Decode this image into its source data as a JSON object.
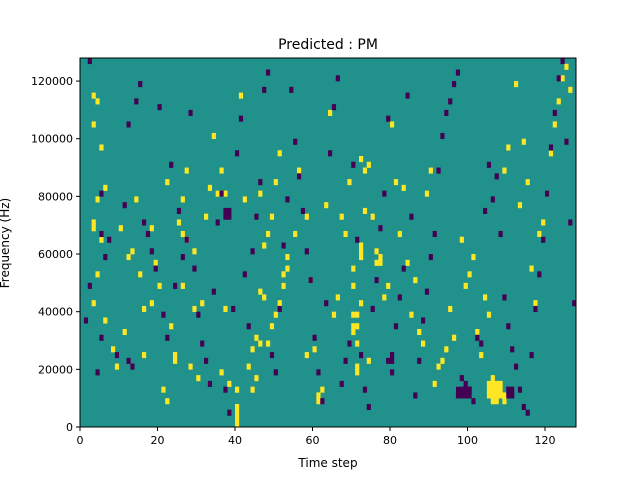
{
  "chart_data": {
    "type": "heatmap",
    "title": "Predicted : PM",
    "xlabel": "Time step",
    "ylabel": "Frequency (Hz)",
    "xlim": [
      0,
      128
    ],
    "ylim": [
      0,
      128000
    ],
    "x_ticks": [
      0,
      20,
      40,
      60,
      80,
      100,
      120
    ],
    "y_ticks": [
      0,
      20000,
      40000,
      60000,
      80000,
      100000,
      120000
    ],
    "x_tick_labels": [
      "0",
      "20",
      "40",
      "60",
      "80",
      "100",
      "120"
    ],
    "y_tick_labels": [
      "0",
      "20000",
      "40000",
      "60000",
      "80000",
      "100000",
      "120000"
    ],
    "n_time_bins": 128,
    "n_freq_bins": 64,
    "bin_height_hz": 2000,
    "colormap": {
      "background": "#21918c",
      "high": "#fde725",
      "low": "#440154"
    },
    "high_cells": [
      [
        3,
        57
      ],
      [
        4,
        56
      ],
      [
        3,
        52
      ],
      [
        5,
        48
      ],
      [
        6,
        41
      ],
      [
        4,
        39
      ],
      [
        3,
        35
      ],
      [
        3,
        34
      ],
      [
        5,
        32
      ],
      [
        4,
        26
      ],
      [
        3,
        21
      ],
      [
        6,
        18
      ],
      [
        8,
        13
      ],
      [
        9,
        10
      ],
      [
        10,
        34
      ],
      [
        14,
        39
      ],
      [
        12,
        29
      ],
      [
        15,
        26
      ],
      [
        13,
        30
      ],
      [
        11,
        16
      ],
      [
        16,
        20
      ],
      [
        18,
        21
      ],
      [
        16,
        12
      ],
      [
        18,
        34
      ],
      [
        19,
        28
      ],
      [
        20,
        24
      ],
      [
        22,
        42
      ],
      [
        23,
        17
      ],
      [
        24,
        12
      ],
      [
        24,
        11
      ],
      [
        21,
        6
      ],
      [
        22,
        4
      ],
      [
        27,
        44
      ],
      [
        26,
        39
      ],
      [
        29,
        30
      ],
      [
        25,
        35
      ],
      [
        26,
        33
      ],
      [
        27,
        32
      ],
      [
        28,
        10
      ],
      [
        30,
        8
      ],
      [
        29,
        20
      ],
      [
        26,
        24
      ],
      [
        31,
        21
      ],
      [
        32,
        36
      ],
      [
        33,
        41
      ],
      [
        34,
        50
      ],
      [
        36,
        44
      ],
      [
        37,
        40
      ],
      [
        37,
        20
      ],
      [
        36,
        9
      ],
      [
        38,
        7
      ],
      [
        40,
        6
      ],
      [
        40,
        3
      ],
      [
        40,
        2
      ],
      [
        40,
        1
      ],
      [
        40,
        0
      ],
      [
        41,
        57
      ],
      [
        42,
        39
      ],
      [
        43,
        10
      ],
      [
        44,
        13
      ],
      [
        45,
        15
      ],
      [
        46,
        14
      ],
      [
        47,
        31
      ],
      [
        48,
        33
      ],
      [
        46,
        40
      ],
      [
        49,
        36
      ],
      [
        50,
        42
      ],
      [
        51,
        47
      ],
      [
        52,
        26
      ],
      [
        53,
        29
      ],
      [
        55,
        33
      ],
      [
        56,
        44
      ],
      [
        58,
        36
      ],
      [
        58,
        12
      ],
      [
        59,
        25
      ],
      [
        60,
        13
      ],
      [
        61,
        4
      ],
      [
        61,
        5
      ],
      [
        62,
        6
      ],
      [
        63,
        38
      ],
      [
        64,
        54
      ],
      [
        65,
        19
      ],
      [
        66,
        22
      ],
      [
        67,
        36
      ],
      [
        68,
        33
      ],
      [
        69,
        42
      ],
      [
        70,
        27
      ],
      [
        70,
        24
      ],
      [
        71,
        10
      ],
      [
        71,
        9
      ],
      [
        72,
        21
      ],
      [
        70,
        16
      ],
      [
        71,
        14
      ],
      [
        72,
        46
      ],
      [
        73,
        37
      ],
      [
        74,
        11
      ],
      [
        75,
        36
      ],
      [
        76,
        30
      ],
      [
        77,
        28
      ],
      [
        78,
        22
      ],
      [
        79,
        24
      ],
      [
        80,
        52
      ],
      [
        81,
        42
      ],
      [
        82,
        33
      ],
      [
        83,
        41
      ],
      [
        84,
        28
      ],
      [
        85,
        19
      ],
      [
        86,
        25
      ],
      [
        87,
        16
      ],
      [
        88,
        14
      ],
      [
        89,
        40
      ],
      [
        90,
        44
      ],
      [
        91,
        7
      ],
      [
        92,
        10
      ],
      [
        93,
        11
      ],
      [
        94,
        13
      ],
      [
        95,
        20
      ],
      [
        96,
        15
      ],
      [
        97,
        6
      ],
      [
        98,
        32
      ],
      [
        99,
        24
      ],
      [
        100,
        26
      ],
      [
        101,
        29
      ],
      [
        102,
        16
      ],
      [
        103,
        12
      ],
      [
        104,
        22
      ],
      [
        105,
        19
      ],
      [
        106,
        8
      ],
      [
        107,
        7
      ],
      [
        106,
        4
      ],
      [
        107,
        4
      ],
      [
        108,
        5
      ],
      [
        108,
        6
      ],
      [
        109,
        44
      ],
      [
        110,
        48
      ],
      [
        112,
        59
      ],
      [
        113,
        38
      ],
      [
        114,
        49
      ],
      [
        115,
        42
      ],
      [
        116,
        27
      ],
      [
        117,
        21
      ],
      [
        118,
        33
      ],
      [
        119,
        35
      ],
      [
        120,
        40
      ],
      [
        121,
        47
      ],
      [
        122,
        52
      ],
      [
        123,
        56
      ],
      [
        124,
        60
      ],
      [
        125,
        62
      ],
      [
        126,
        58
      ],
      [
        70,
        17
      ],
      [
        71,
        17
      ],
      [
        70,
        19
      ],
      [
        71,
        19
      ],
      [
        72,
        29
      ],
      [
        72,
        30
      ],
      [
        72,
        31
      ],
      [
        73,
        44
      ],
      [
        74,
        45
      ],
      [
        76,
        28
      ],
      [
        77,
        29
      ],
      [
        48,
        14
      ],
      [
        49,
        17
      ],
      [
        50,
        19
      ],
      [
        51,
        21
      ],
      [
        52,
        24
      ],
      [
        53,
        27
      ],
      [
        35,
        40
      ],
      [
        36,
        40
      ],
      [
        46,
        23
      ],
      [
        47,
        22
      ],
      [
        44,
        6
      ],
      [
        45,
        8
      ],
      [
        105,
        5
      ],
      [
        105,
        6
      ],
      [
        105,
        7
      ],
      [
        106,
        5
      ],
      [
        106,
        6
      ],
      [
        106,
        7
      ],
      [
        107,
        5
      ],
      [
        107,
        6
      ],
      [
        108,
        7
      ],
      [
        109,
        4
      ],
      [
        109,
        5
      ]
    ],
    "low_cells": [
      [
        2,
        63
      ],
      [
        1,
        18
      ],
      [
        2,
        24
      ],
      [
        4,
        9
      ],
      [
        5,
        15
      ],
      [
        5,
        33
      ],
      [
        5,
        40
      ],
      [
        6,
        29
      ],
      [
        9,
        12
      ],
      [
        7,
        32
      ],
      [
        12,
        52
      ],
      [
        11,
        38
      ],
      [
        12,
        11
      ],
      [
        13,
        10
      ],
      [
        14,
        56
      ],
      [
        15,
        59
      ],
      [
        16,
        35
      ],
      [
        17,
        33
      ],
      [
        18,
        30
      ],
      [
        19,
        27
      ],
      [
        20,
        55
      ],
      [
        21,
        19
      ],
      [
        22,
        15
      ],
      [
        23,
        45
      ],
      [
        24,
        24
      ],
      [
        25,
        37
      ],
      [
        26,
        29
      ],
      [
        27,
        32
      ],
      [
        28,
        54
      ],
      [
        29,
        27
      ],
      [
        30,
        19
      ],
      [
        31,
        14
      ],
      [
        32,
        11
      ],
      [
        33,
        7
      ],
      [
        34,
        23
      ],
      [
        35,
        35
      ],
      [
        36,
        40
      ],
      [
        37,
        6
      ],
      [
        38,
        2
      ],
      [
        39,
        20
      ],
      [
        40,
        47
      ],
      [
        41,
        53
      ],
      [
        42,
        26
      ],
      [
        43,
        17
      ],
      [
        44,
        30
      ],
      [
        45,
        36
      ],
      [
        46,
        42
      ],
      [
        47,
        58
      ],
      [
        48,
        61
      ],
      [
        49,
        12
      ],
      [
        50,
        9
      ],
      [
        51,
        20
      ],
      [
        52,
        31
      ],
      [
        53,
        39
      ],
      [
        54,
        58
      ],
      [
        55,
        49
      ],
      [
        56,
        43
      ],
      [
        57,
        37
      ],
      [
        58,
        30
      ],
      [
        59,
        25
      ],
      [
        60,
        15
      ],
      [
        61,
        9
      ],
      [
        62,
        4
      ],
      [
        63,
        21
      ],
      [
        64,
        47
      ],
      [
        65,
        55
      ],
      [
        66,
        60
      ],
      [
        67,
        7
      ],
      [
        68,
        11
      ],
      [
        69,
        14
      ],
      [
        70,
        45
      ],
      [
        71,
        32
      ],
      [
        72,
        12
      ],
      [
        73,
        6
      ],
      [
        74,
        3
      ],
      [
        75,
        20
      ],
      [
        76,
        25
      ],
      [
        77,
        34
      ],
      [
        78,
        40
      ],
      [
        79,
        53
      ],
      [
        80,
        9
      ],
      [
        81,
        17
      ],
      [
        82,
        22
      ],
      [
        83,
        27
      ],
      [
        84,
        57
      ],
      [
        85,
        36
      ],
      [
        86,
        5
      ],
      [
        87,
        11
      ],
      [
        88,
        18
      ],
      [
        89,
        23
      ],
      [
        90,
        29
      ],
      [
        91,
        33
      ],
      [
        92,
        44
      ],
      [
        93,
        50
      ],
      [
        94,
        54
      ],
      [
        95,
        56
      ],
      [
        96,
        59
      ],
      [
        97,
        61
      ],
      [
        98,
        8
      ],
      [
        99,
        7
      ],
      [
        100,
        6
      ],
      [
        101,
        4
      ],
      [
        102,
        15
      ],
      [
        103,
        14
      ],
      [
        104,
        37
      ],
      [
        105,
        45
      ],
      [
        106,
        39
      ],
      [
        107,
        43
      ],
      [
        108,
        33
      ],
      [
        109,
        22
      ],
      [
        110,
        17
      ],
      [
        111,
        13
      ],
      [
        112,
        10
      ],
      [
        113,
        6
      ],
      [
        114,
        3
      ],
      [
        115,
        2
      ],
      [
        116,
        12
      ],
      [
        117,
        20
      ],
      [
        118,
        26
      ],
      [
        119,
        32
      ],
      [
        120,
        40
      ],
      [
        121,
        48
      ],
      [
        122,
        54
      ],
      [
        123,
        60
      ],
      [
        124,
        63
      ],
      [
        125,
        49
      ],
      [
        126,
        35
      ],
      [
        127,
        21
      ],
      [
        37,
        36
      ],
      [
        38,
        36
      ],
      [
        37,
        37
      ],
      [
        38,
        37
      ],
      [
        97,
        5
      ],
      [
        98,
        5
      ],
      [
        99,
        5
      ],
      [
        100,
        5
      ],
      [
        97,
        6
      ],
      [
        98,
        6
      ],
      [
        99,
        6
      ],
      [
        100,
        6
      ],
      [
        110,
        5
      ],
      [
        110,
        6
      ],
      [
        111,
        5
      ],
      [
        111,
        6
      ],
      [
        79,
        11
      ],
      [
        80,
        11
      ],
      [
        80,
        12
      ]
    ]
  }
}
